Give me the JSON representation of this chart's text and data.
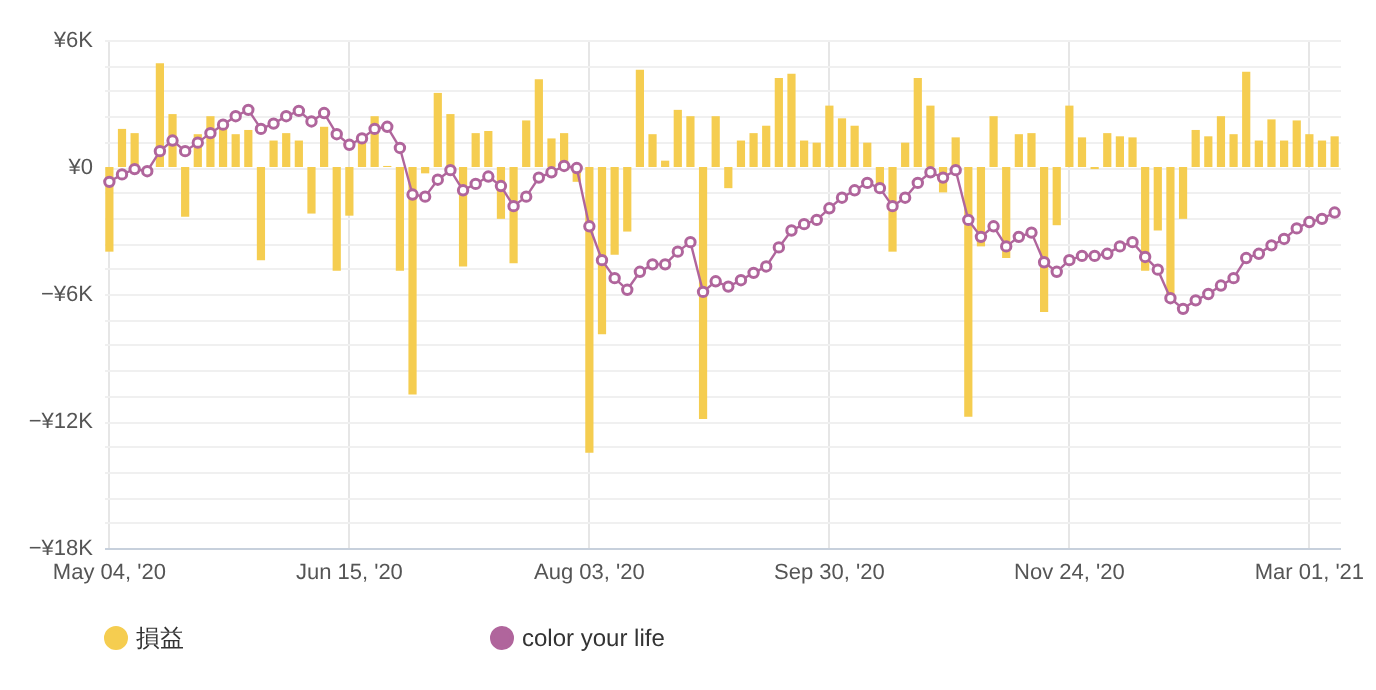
{
  "chart_data": {
    "type": "bar",
    "categories": [
      "May 04, '20",
      null,
      null,
      null,
      null,
      null,
      null,
      null,
      null,
      null,
      null,
      null,
      null,
      null,
      null,
      null,
      null,
      null,
      null,
      "Jun 15, '20",
      null,
      null,
      null,
      null,
      null,
      null,
      null,
      null,
      null,
      null,
      null,
      null,
      null,
      null,
      null,
      null,
      null,
      null,
      "Aug 03, '20",
      null,
      null,
      null,
      null,
      null,
      null,
      null,
      null,
      null,
      null,
      null,
      null,
      null,
      null,
      null,
      null,
      null,
      null,
      "Sep 30, '20",
      null,
      null,
      null,
      null,
      null,
      null,
      null,
      null,
      null,
      null,
      null,
      null,
      null,
      null,
      null,
      null,
      null,
      null,
      "Nov 24, '20",
      null,
      null,
      null,
      null,
      null,
      null,
      null,
      null,
      null,
      null,
      null,
      null,
      null,
      null,
      null,
      null,
      null,
      null,
      "Mar 01, '21",
      null,
      null
    ],
    "series": [
      {
        "name": "損益",
        "color": "#f5cd50",
        "values": [
          -4000,
          1800,
          1600,
          null,
          4900,
          2500,
          -2350,
          1550,
          2400,
          1950,
          1550,
          1750,
          -4400,
          1250,
          1600,
          1250,
          -2200,
          1900,
          -4900,
          -2300,
          1300,
          2400,
          50,
          -4900,
          -10750,
          -300,
          3500,
          2500,
          -4700,
          1600,
          1700,
          -2450,
          -4550,
          2200,
          4150,
          1350,
          1600,
          -700,
          -13500,
          -7900,
          -4150,
          -3050,
          4600,
          1550,
          300,
          2700,
          2400,
          -11900,
          2400,
          -1000,
          1250,
          1600,
          1950,
          4200,
          4400,
          1250,
          1150,
          2900,
          2300,
          1950,
          1150,
          -1000,
          -4000,
          1150,
          4200,
          2900,
          -1200,
          1400,
          -11800,
          -3750,
          2400,
          -4300,
          1550,
          1600,
          -6850,
          -2750,
          2900,
          1400,
          -100,
          1600,
          1450,
          1400,
          -4900,
          -3000,
          -6050,
          -2450,
          1750,
          1450,
          2400,
          1550,
          4500,
          1250,
          2250,
          1250,
          2200,
          1550,
          1250,
          1450
        ]
      },
      {
        "name": "color your life",
        "type": "line",
        "color": "#b0659c",
        "values": [
          -700,
          -350,
          -100,
          -200,
          750,
          1250,
          750,
          1150,
          1600,
          2000,
          2400,
          2700,
          1800,
          2050,
          2400,
          2650,
          2150,
          2550,
          1550,
          1050,
          1350,
          1800,
          1900,
          900,
          -1300,
          -1400,
          -600,
          -150,
          -1100,
          -800,
          -450,
          -900,
          -1850,
          -1400,
          -500,
          -250,
          50,
          -50,
          -2800,
          -4400,
          -5250,
          -5800,
          -4950,
          -4600,
          -4600,
          -4000,
          -3550,
          -5900,
          -5400,
          -5650,
          -5350,
          -5000,
          -4700,
          -3800,
          -3000,
          -2700,
          -2500,
          -1950,
          -1450,
          -1100,
          -750,
          -1000,
          -1850,
          -1450,
          -750,
          -250,
          -500,
          -150,
          -2500,
          -3300,
          -2800,
          -3750,
          -3300,
          -3100,
          -4500,
          -4950,
          -4400,
          -4200,
          -4200,
          -4100,
          -3750,
          -3550,
          -4250,
          -4850,
          -6200,
          -6700,
          -6300,
          -6000,
          -5600,
          -5250,
          -4300,
          -4100,
          -3700,
          -3400,
          -2900,
          -2600,
          -2450,
          -2150
        ]
      }
    ],
    "ylim": [
      -18000,
      6000
    ],
    "yticks": [
      {
        "value": -18000,
        "label": "−¥18K"
      },
      {
        "value": -16800,
        "label": null
      },
      {
        "value": -15600,
        "label": null
      },
      {
        "value": -14400,
        "label": null
      },
      {
        "value": -13200,
        "label": null
      },
      {
        "value": -12000,
        "label": "−¥12K"
      },
      {
        "value": -10800,
        "label": null
      },
      {
        "value": -9600,
        "label": null
      },
      {
        "value": -8400,
        "label": null
      },
      {
        "value": -7200,
        "label": null
      },
      {
        "value": -6000,
        "label": "−¥6K"
      },
      {
        "value": -4800,
        "label": null
      },
      {
        "value": -3600,
        "label": null
      },
      {
        "value": -2400,
        "label": null
      },
      {
        "value": -1200,
        "label": null
      },
      {
        "value": 0,
        "label": "¥0"
      },
      {
        "value": 1200,
        "label": null
      },
      {
        "value": 2400,
        "label": null
      },
      {
        "value": 3600,
        "label": null
      },
      {
        "value": 4800,
        "label": null
      },
      {
        "value": 6000,
        "label": "¥6K"
      }
    ],
    "grid": true,
    "legend": "bottom",
    "marker": "circle"
  }
}
